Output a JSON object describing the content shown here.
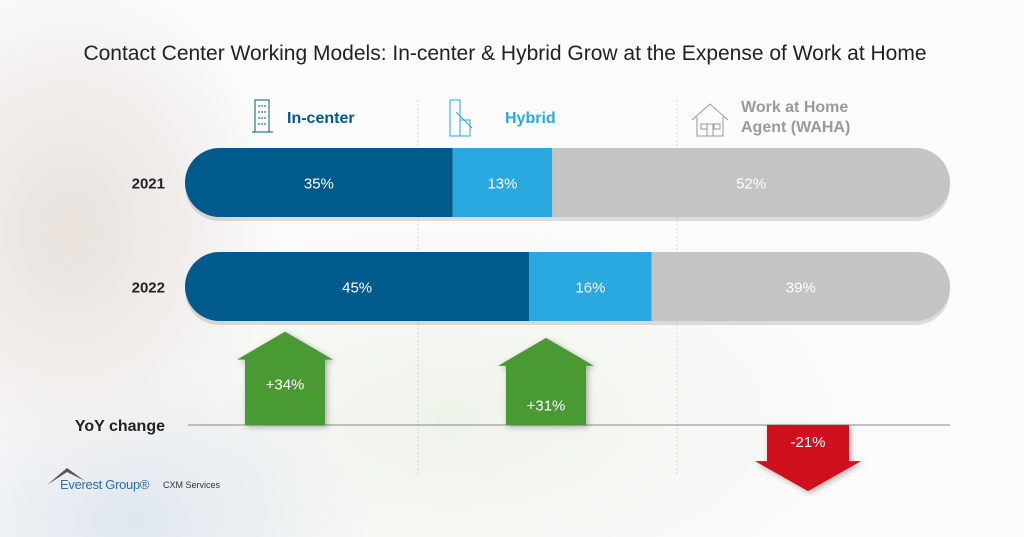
{
  "chart_data": {
    "type": "bar",
    "orientation": "horizontal-stacked",
    "title": "Contact Center Working Models: In-center & Hybrid Grow at the Expense of Work at Home",
    "categories": [
      "2021",
      "2022"
    ],
    "series": [
      {
        "name": "In-center",
        "values": [
          35,
          45
        ],
        "labels": [
          "35%",
          "45%"
        ],
        "color": "#005a8c"
      },
      {
        "name": "Hybrid",
        "values": [
          13,
          16
        ],
        "labels": [
          "13%",
          "16%"
        ],
        "color": "#29a9e0"
      },
      {
        "name": "Work at Home Agent (WAHA)",
        "values": [
          52,
          39
        ],
        "labels": [
          "52%",
          "39%"
        ],
        "color": "#c4c4c4"
      }
    ],
    "legend_name_lines": [
      [
        "In-center"
      ],
      [
        "Hybrid"
      ],
      [
        "Work at Home",
        "Agent (WAHA)"
      ]
    ],
    "legend_colors": [
      "#005a8c",
      "#29a9e0",
      "#9a9a9a"
    ],
    "legend_icons": [
      "office-building-icon",
      "building-house-icon",
      "house-icon"
    ],
    "yoy": {
      "label": "YoY change",
      "values": [
        34,
        31,
        -21
      ],
      "labels": [
        "+34%",
        "+31%",
        "-21%"
      ],
      "colors": [
        "#4a9a34",
        "#4a9a34",
        "#d0101c"
      ]
    }
  },
  "logo": {
    "brand": "Everest Group®",
    "tagline": "CXM Services"
  }
}
